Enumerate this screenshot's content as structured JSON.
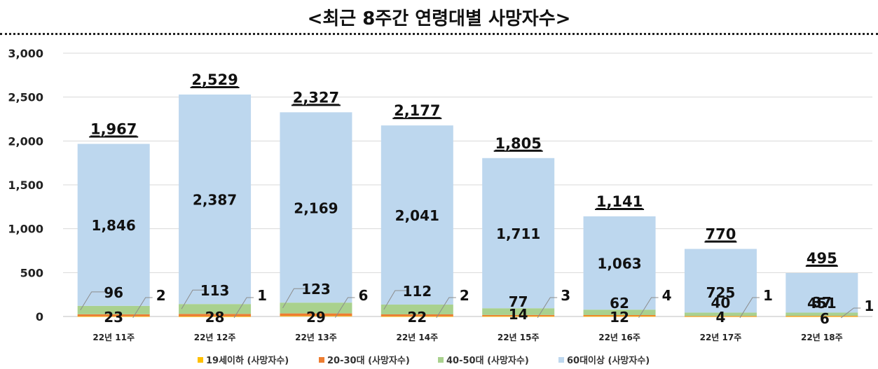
{
  "chart_data": {
    "type": "bar",
    "stacked": true,
    "title": "<최근 8주간 연령대별 사망자수>",
    "categories": [
      "22년 11주",
      "22년 12주",
      "22년 13주",
      "22년 14주",
      "22년 15주",
      "22년 16주",
      "22년 17주",
      "22년 18주"
    ],
    "series": [
      {
        "name": "19세이하 (사망자수)",
        "values": [
          2,
          1,
          6,
          2,
          3,
          4,
          1,
          1
        ],
        "color": "#FFC000"
      },
      {
        "name": "20-30대 (사망자수)",
        "values": [
          23,
          28,
          29,
          22,
          14,
          12,
          4,
          6
        ],
        "color": "#ED7D31"
      },
      {
        "name": "40-50대 (사망자수)",
        "values": [
          96,
          113,
          123,
          112,
          77,
          62,
          40,
          37
        ],
        "color": "#A9D18E"
      },
      {
        "name": "60대이상 (사망자수)",
        "values": [
          1846,
          2387,
          2169,
          2041,
          1711,
          1063,
          725,
          451
        ],
        "color": "#BDD7EE"
      }
    ],
    "totals": [
      1967,
      2529,
      2327,
      2177,
      1805,
      1141,
      770,
      495
    ],
    "ylim": [
      0,
      3000
    ],
    "yticks": [
      0,
      500,
      1000,
      1500,
      2000,
      2500,
      3000
    ],
    "ytick_labels": [
      "0",
      "500",
      "1,000",
      "1,500",
      "2,000",
      "2,500",
      "3,000"
    ],
    "grid": true,
    "legend_position": "bottom"
  }
}
